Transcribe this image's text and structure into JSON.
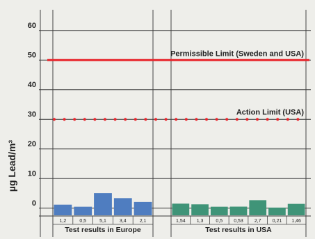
{
  "chart_data": {
    "type": "bar",
    "ylabel": "µg Lead/m³",
    "ylim": [
      -3,
      66
    ],
    "yticks": [
      "0",
      "10",
      "20",
      "30",
      "40",
      "50",
      "60"
    ],
    "grid": true,
    "background": "#eeeeea",
    "groups": [
      {
        "name": "Test results in Europe",
        "color": "#4f7dc0",
        "labels": [
          "1,2",
          "0,5",
          "5,1",
          "3,4",
          "2,1"
        ],
        "values": [
          1.2,
          0.5,
          5.1,
          3.4,
          2.1
        ]
      },
      {
        "name": "Test results in USA",
        "color": "#3f9478",
        "labels": [
          "1,54",
          "1,3",
          "0,5",
          "0,53",
          "2,7",
          "0,21",
          "1,46"
        ],
        "values": [
          1.54,
          1.3,
          0.5,
          0.53,
          2.7,
          0.21,
          1.46
        ]
      }
    ],
    "reference_lines": [
      {
        "label": "Permissible Limit (Sweden and USA)",
        "value": 50,
        "style": "solid",
        "color": "#e8262d"
      },
      {
        "label": "Action Limit (USA)",
        "value": 30,
        "style": "dotted",
        "color": "#e8262d"
      }
    ]
  }
}
